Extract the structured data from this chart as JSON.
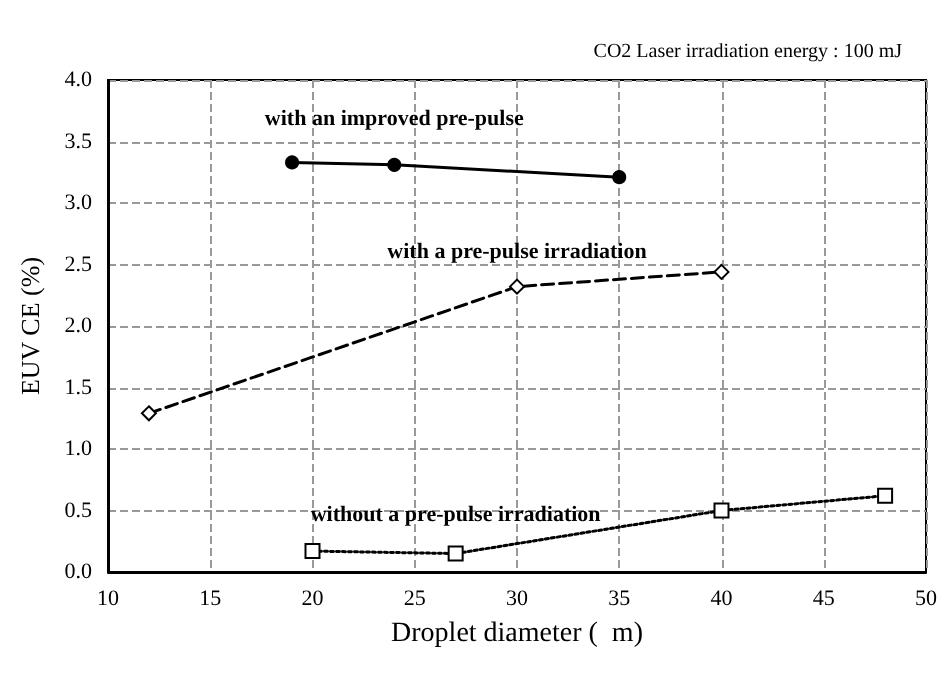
{
  "chart_data": {
    "type": "line",
    "xlabel": "Droplet diameter (  m)",
    "ylabel": "EUV CE (%)",
    "annotations": [
      "CO2 Laser irradiation energy : 100 mJ"
    ],
    "xlim": [
      10,
      50
    ],
    "xticks": [
      10,
      15,
      20,
      25,
      30,
      35,
      40,
      45,
      50
    ],
    "ylim": [
      0,
      4
    ],
    "yticks": [
      {
        "value": 0,
        "label": "0.0"
      },
      {
        "value": 0.5,
        "label": "0.5"
      },
      {
        "value": 1,
        "label": "1.0"
      },
      {
        "value": 1.5,
        "label": "1.5"
      },
      {
        "value": 2,
        "label": "2.0"
      },
      {
        "value": 2.5,
        "label": "2.5"
      },
      {
        "value": 3,
        "label": "3.0"
      },
      {
        "value": 3.5,
        "label": "3.5"
      },
      {
        "value": 4,
        "label": "4.0"
      }
    ],
    "grid": true,
    "legend": false,
    "series": [
      {
        "name": "with an improved pre-pulse",
        "color": "#000000",
        "x": [
          19,
          24,
          35
        ],
        "values": [
          3.33,
          3.31,
          3.21
        ],
        "marker": "circle",
        "line_style": "solid"
      },
      {
        "name": "with a pre-pulse irradiation",
        "color": "#000000",
        "x": [
          12,
          30,
          40
        ],
        "values": [
          1.29,
          2.32,
          2.44
        ],
        "marker": "diamond",
        "line_style": "dashed"
      },
      {
        "name": "without a pre-pulse irradiation",
        "color": "#000000",
        "x": [
          20,
          27,
          40,
          48
        ],
        "values": [
          0.17,
          0.15,
          0.5,
          0.62
        ],
        "marker": "square",
        "line_style": "dotted"
      }
    ]
  }
}
